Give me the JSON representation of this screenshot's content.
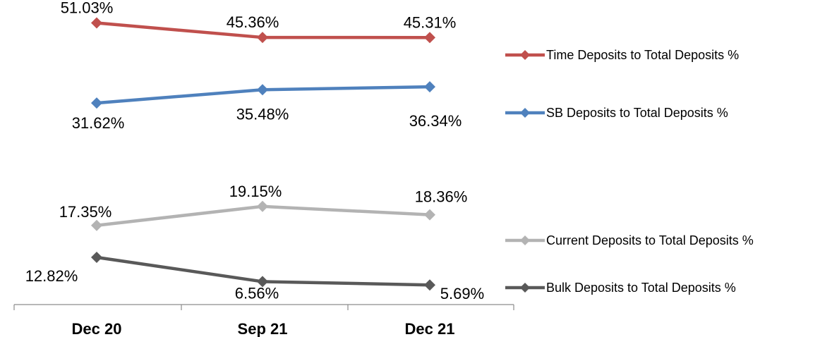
{
  "chart_data": {
    "type": "line",
    "categories": [
      "Dec 20",
      "Sep 21",
      "Dec 21"
    ],
    "series": [
      {
        "name": "Time Deposits to Total Deposits %",
        "values": [
          51.03,
          45.36,
          45.31
        ],
        "labels": [
          "51.03%",
          "45.36%",
          "45.31%"
        ],
        "color": "#c0504d"
      },
      {
        "name": "SB Deposits to Total Deposits %",
        "values": [
          31.62,
          35.48,
          36.34
        ],
        "labels": [
          "31.62%",
          "35.48%",
          "36.34%"
        ],
        "color": "#4f81bd"
      },
      {
        "name": "Current Deposits to Total Deposits %",
        "values": [
          17.35,
          19.15,
          18.36
        ],
        "labels": [
          "17.35%",
          "19.15%",
          "18.36%"
        ],
        "color": "#b3b3b3"
      },
      {
        "name": "Bulk Deposits to Total Deposits %",
        "values": [
          12.82,
          6.56,
          5.69
        ],
        "labels": [
          "12.82%",
          "6.56%",
          "5.69%"
        ],
        "color": "#595959"
      }
    ],
    "title": "",
    "xlabel": "",
    "ylabel": "",
    "legend": "right",
    "grid": false,
    "marker": "diamond"
  }
}
